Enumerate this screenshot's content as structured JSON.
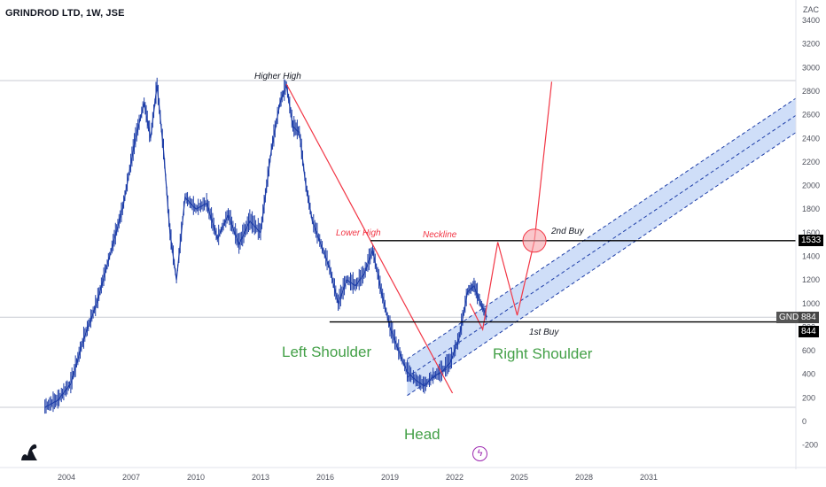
{
  "chart_data": {
    "type": "line",
    "title": "GRINDROD LTD, 1W, JSE",
    "unit": "ZAC",
    "y_ticks": [
      -200,
      0,
      200,
      400,
      600,
      800,
      1000,
      1200,
      1400,
      1600,
      1800,
      2000,
      2200,
      2400,
      2600,
      2800,
      3000,
      3200,
      3400
    ],
    "x_ticks": [
      "2004",
      "2007",
      "2010",
      "2013",
      "2016",
      "2019",
      "2022",
      "2025",
      "2028",
      "2031"
    ],
    "ylim": [
      -300,
      3500
    ],
    "series": [
      {
        "x": [
          "2003.0",
          "2003.6",
          "2004.2",
          "2004.8",
          "2005.4",
          "2006.0",
          "2006.6",
          "2007.2",
          "2007.6",
          "2007.9",
          "2008.2",
          "2008.5",
          "2008.8",
          "2009.1",
          "2009.5",
          "2010.0",
          "2010.5",
          "2011.0",
          "2011.5",
          "2012.0",
          "2012.5",
          "2013.0",
          "2013.5",
          "2013.9",
          "2014.2",
          "2014.5",
          "2014.8",
          "2015.1",
          "2015.4",
          "2015.8",
          "2016.2",
          "2016.6",
          "2017.0",
          "2017.4",
          "2017.8",
          "2018.2",
          "2018.6",
          "2019.0",
          "2019.4",
          "2019.8",
          "2020.2",
          "2020.6",
          "2021.0",
          "2021.4",
          "2021.8",
          "2022.2",
          "2022.6",
          "2022.9",
          "2023.2",
          "2023.5"
        ],
        "values": [
          120,
          180,
          320,
          700,
          1000,
          1400,
          1800,
          2400,
          2700,
          2400,
          2850,
          2300,
          1600,
          1200,
          1900,
          1800,
          1850,
          1550,
          1750,
          1500,
          1700,
          1600,
          2300,
          2700,
          2850,
          2500,
          2450,
          2000,
          1700,
          1500,
          1300,
          1000,
          1200,
          1150,
          1250,
          1450,
          1100,
          800,
          600,
          420,
          350,
          300,
          380,
          420,
          500,
          700,
          1100,
          1150,
          1000,
          884
        ]
      }
    ],
    "price_labels": {
      "symbol": "GND",
      "last": 884,
      "support": 844,
      "neckline": 1533
    },
    "annotations": {
      "higher_high": "Higher High",
      "lower_high": "Lower High",
      "neckline": "Neckline",
      "buy2": "2nd Buy",
      "buy1": "1st Buy",
      "left_shoulder": "Left Shoulder",
      "right_shoulder": "Right Shoulder",
      "head": "Head"
    },
    "colors": {
      "candles": "#1e3ea8",
      "trend": "#f23645",
      "channel_fill": "#bfd3f5",
      "shoulder_text": "#43a047",
      "level": "#000000",
      "neckline_circle": "#f7a1a8"
    }
  }
}
